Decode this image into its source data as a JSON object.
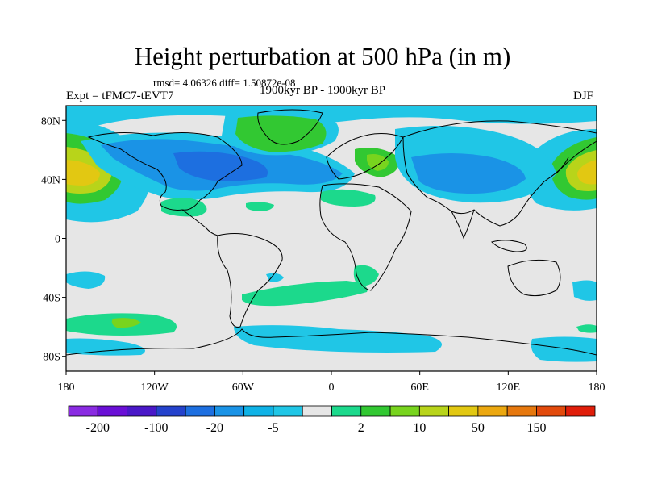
{
  "title": "Height perturbation at 500 hPa (in m)",
  "stats_line": "rmsd= 4.06326 diff= 1.50872e-08",
  "left_label": "Expt = tFMC7-tEVT7",
  "center_label": "1900kyr BP - 1900kyr BP",
  "right_label": "DJF",
  "lat_labels": [
    "80N",
    "40N",
    "0",
    "40S",
    "80S"
  ],
  "lon_labels": [
    "180",
    "120W",
    "60W",
    "0",
    "60E",
    "120E",
    "180"
  ],
  "colorbar": {
    "labels": [
      "-200",
      "-100",
      "-20",
      "-5",
      "2",
      "10",
      "50",
      "150"
    ],
    "colors": [
      "#8a2be2",
      "#6a0fd6",
      "#4a18c8",
      "#2442cc",
      "#1d6fe0",
      "#1a93e6",
      "#0fb2e6",
      "#20c6e6",
      "#e6e6e6",
      "#1cd98c",
      "#32c832",
      "#78d41e",
      "#b8d41a",
      "#e2c812",
      "#eca810",
      "#e6780e",
      "#e24a0c",
      "#e01e0a"
    ]
  },
  "map_colors": {
    "background": "#e6e6e6",
    "coast": "#000000"
  }
}
